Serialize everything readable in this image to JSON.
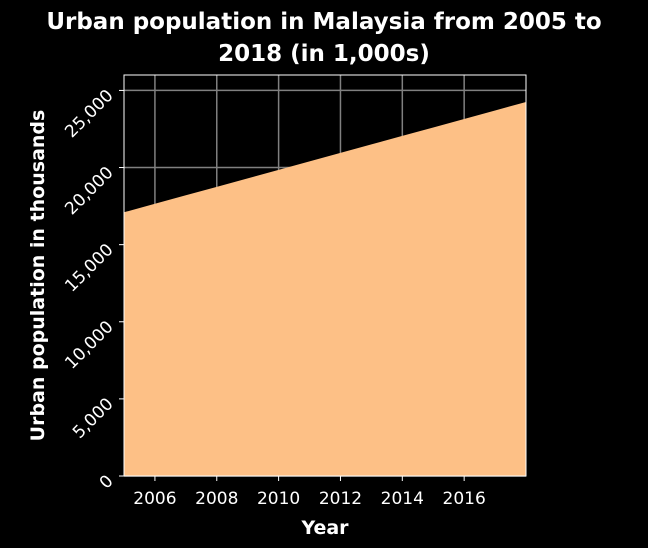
{
  "chart_data": {
    "type": "area",
    "title_line1": "Urban population in Malaysia from 2005 to",
    "title_line2": "2018 (in 1,000s)",
    "xlabel": "Year",
    "ylabel": "Urban population in thousands",
    "x": [
      2005,
      2006,
      2007,
      2008,
      2009,
      2010,
      2011,
      2012,
      2013,
      2014,
      2015,
      2016,
      2017,
      2018
    ],
    "series": [
      {
        "values": [
          17100,
          17650,
          18200,
          18750,
          19300,
          19850,
          20400,
          20950,
          21500,
          22050,
          22600,
          23150,
          23700,
          24250
        ]
      }
    ],
    "xlim": [
      2005,
      2018
    ],
    "ylim": [
      0,
      26000
    ],
    "x_ticks": [
      2006,
      2008,
      2010,
      2012,
      2014,
      2016
    ],
    "x_tick_labels": [
      "2006",
      "2008",
      "2010",
      "2012",
      "2014",
      "2016"
    ],
    "y_ticks": [
      0,
      5000,
      10000,
      15000,
      20000,
      25000
    ],
    "y_tick_labels": [
      "0",
      "5,000",
      "10,000",
      "15,000",
      "20,000",
      "25,000"
    ],
    "grid": true,
    "colors": {
      "fill": "#fdc086",
      "background": "#000000",
      "grid": "#808080",
      "axis": "#ffffff"
    }
  }
}
